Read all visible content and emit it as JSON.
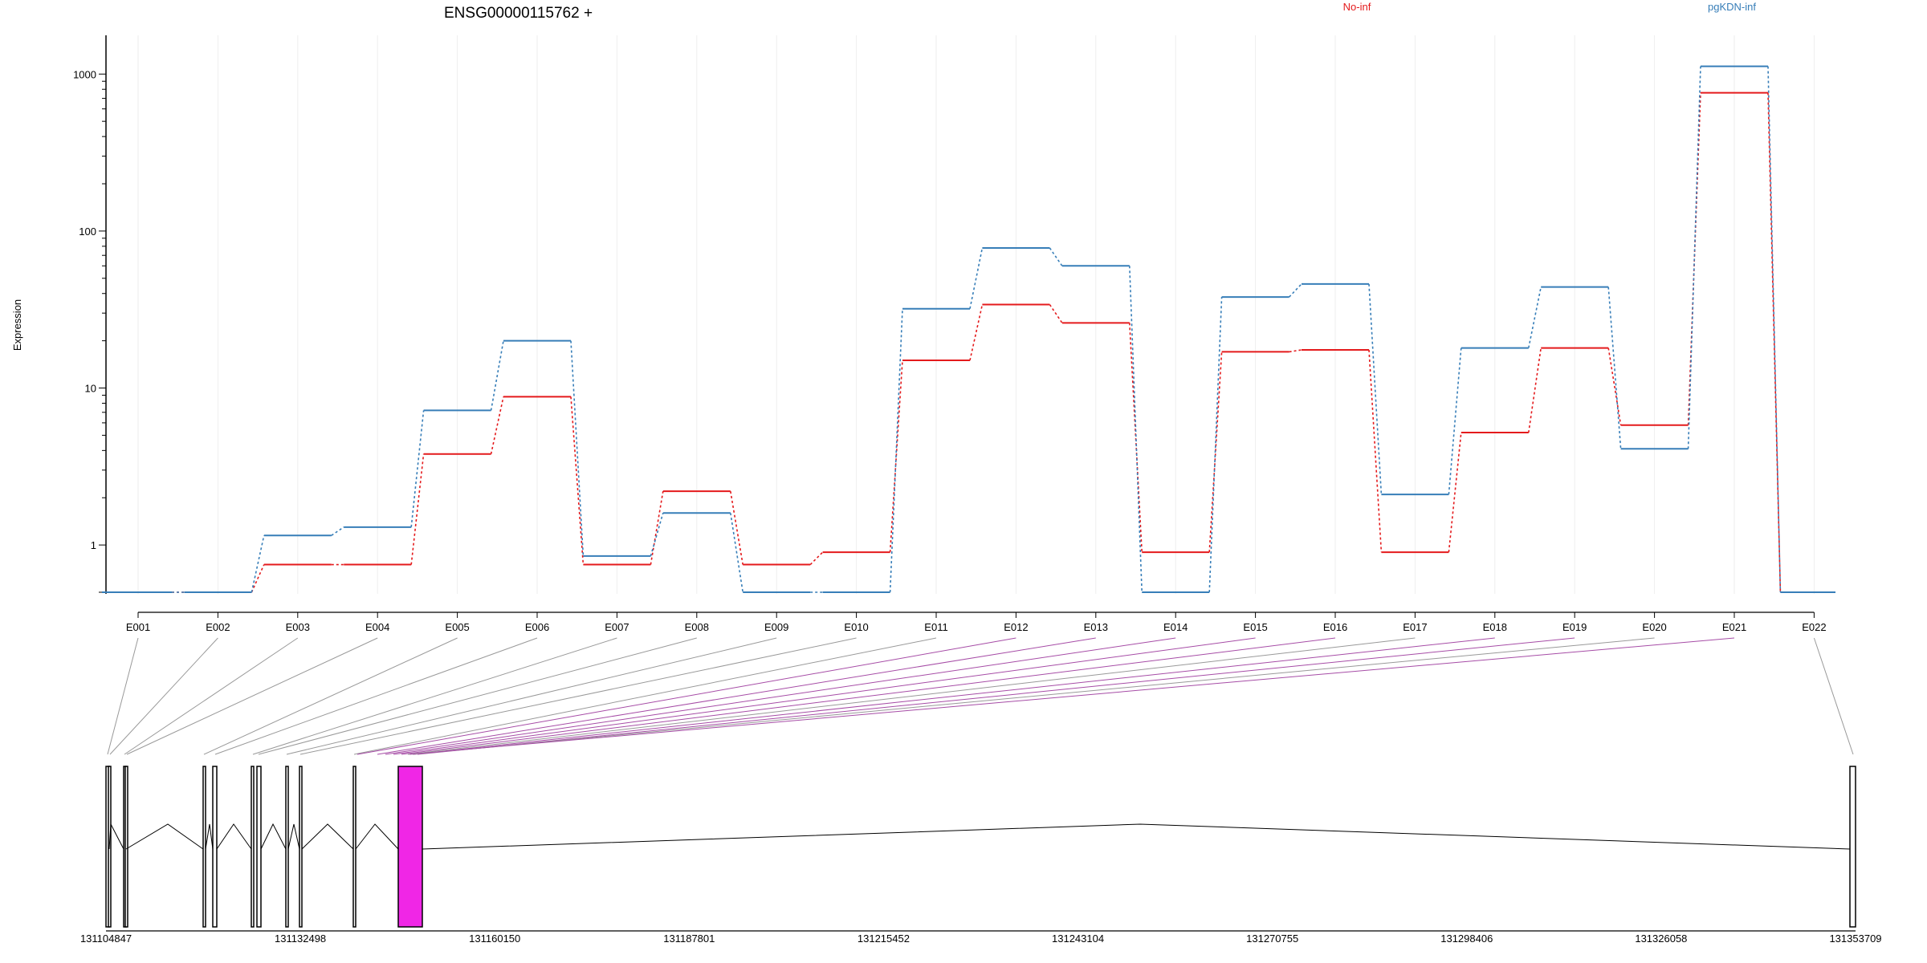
{
  "chart_data": {
    "type": "line",
    "title": "ENSG00000115762 +",
    "ylabel": "Expression",
    "yscale": "log",
    "ylim": [
      0.5,
      1300
    ],
    "yticks": [
      1,
      10,
      100,
      1000
    ],
    "yticklabels": [
      "1",
      "10",
      "100",
      "1000"
    ],
    "grid": "vertical lines at exons",
    "legend_placement": "top",
    "categories": [
      "E001",
      "E002",
      "E003",
      "E004",
      "E005",
      "E006",
      "E007",
      "E008",
      "E009",
      "E010",
      "E011",
      "E012",
      "E013",
      "E014",
      "E015",
      "E016",
      "E017",
      "E018",
      "E019",
      "E020",
      "E021",
      "E022"
    ],
    "series": [
      {
        "name": "No-inf",
        "color": "#e41a1c",
        "values": [
          0.5,
          0.5,
          0.75,
          0.75,
          3.8,
          8.8,
          0.75,
          2.2,
          0.75,
          0.9,
          15,
          34,
          26,
          0.9,
          17,
          17.5,
          0.9,
          5.2,
          18,
          5.8,
          760,
          0.5
        ]
      },
      {
        "name": "pgKDN-inf",
        "color": "#377eb8",
        "values": [
          0.5,
          0.5,
          1.15,
          1.3,
          7.2,
          20,
          0.85,
          1.6,
          0.5,
          0.5,
          32,
          78,
          60,
          0.5,
          38,
          46,
          2.1,
          18,
          44,
          4.1,
          1120,
          0.5
        ]
      }
    ],
    "gene_model": {
      "coordinate_ticks": [
        "131104847",
        "131132498",
        "131160150",
        "131187801",
        "131215452",
        "131243104",
        "131270755",
        "131298406",
        "131326058",
        "131353709"
      ],
      "highlighted_color": "#f026e6",
      "connector_colors": {
        "default": "#999999",
        "highlighted": "#a64ca6"
      }
    }
  }
}
